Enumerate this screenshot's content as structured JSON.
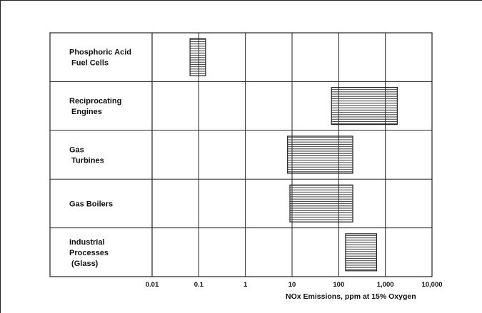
{
  "chart_data": {
    "type": "bar",
    "orientation": "horizontal",
    "subtype": "range",
    "xscale": "log",
    "xlim": [
      0.01,
      10000
    ],
    "xlabel": "NOx Emissions, ppm at 15% Oxygen",
    "ylabel": "",
    "title": "",
    "grid": true,
    "legend": "none",
    "x_ticks": [
      "0.01",
      "0.1",
      "1",
      "10",
      "100",
      "1,000",
      "10,000"
    ],
    "x_tick_values": [
      0.01,
      0.1,
      1,
      10,
      100,
      1000,
      10000
    ],
    "categories": [
      [
        "Phosphoric Acid",
        " Fuel Cells"
      ],
      [
        "Reciprocating",
        "  Engines"
      ],
      [
        "Gas",
        "  Turbines"
      ],
      [
        "Gas Boilers"
      ],
      [
        "Industrial",
        "Processes",
        "  (Glass)"
      ]
    ],
    "ranges": [
      [
        0.065,
        0.14
      ],
      [
        70,
        1800
      ],
      [
        8,
        200
      ],
      [
        9,
        200
      ],
      [
        140,
        650
      ]
    ],
    "colors": {
      "bar_fill": "#ffffff",
      "bar_hatch": "#333333",
      "grid": "#222222"
    }
  }
}
